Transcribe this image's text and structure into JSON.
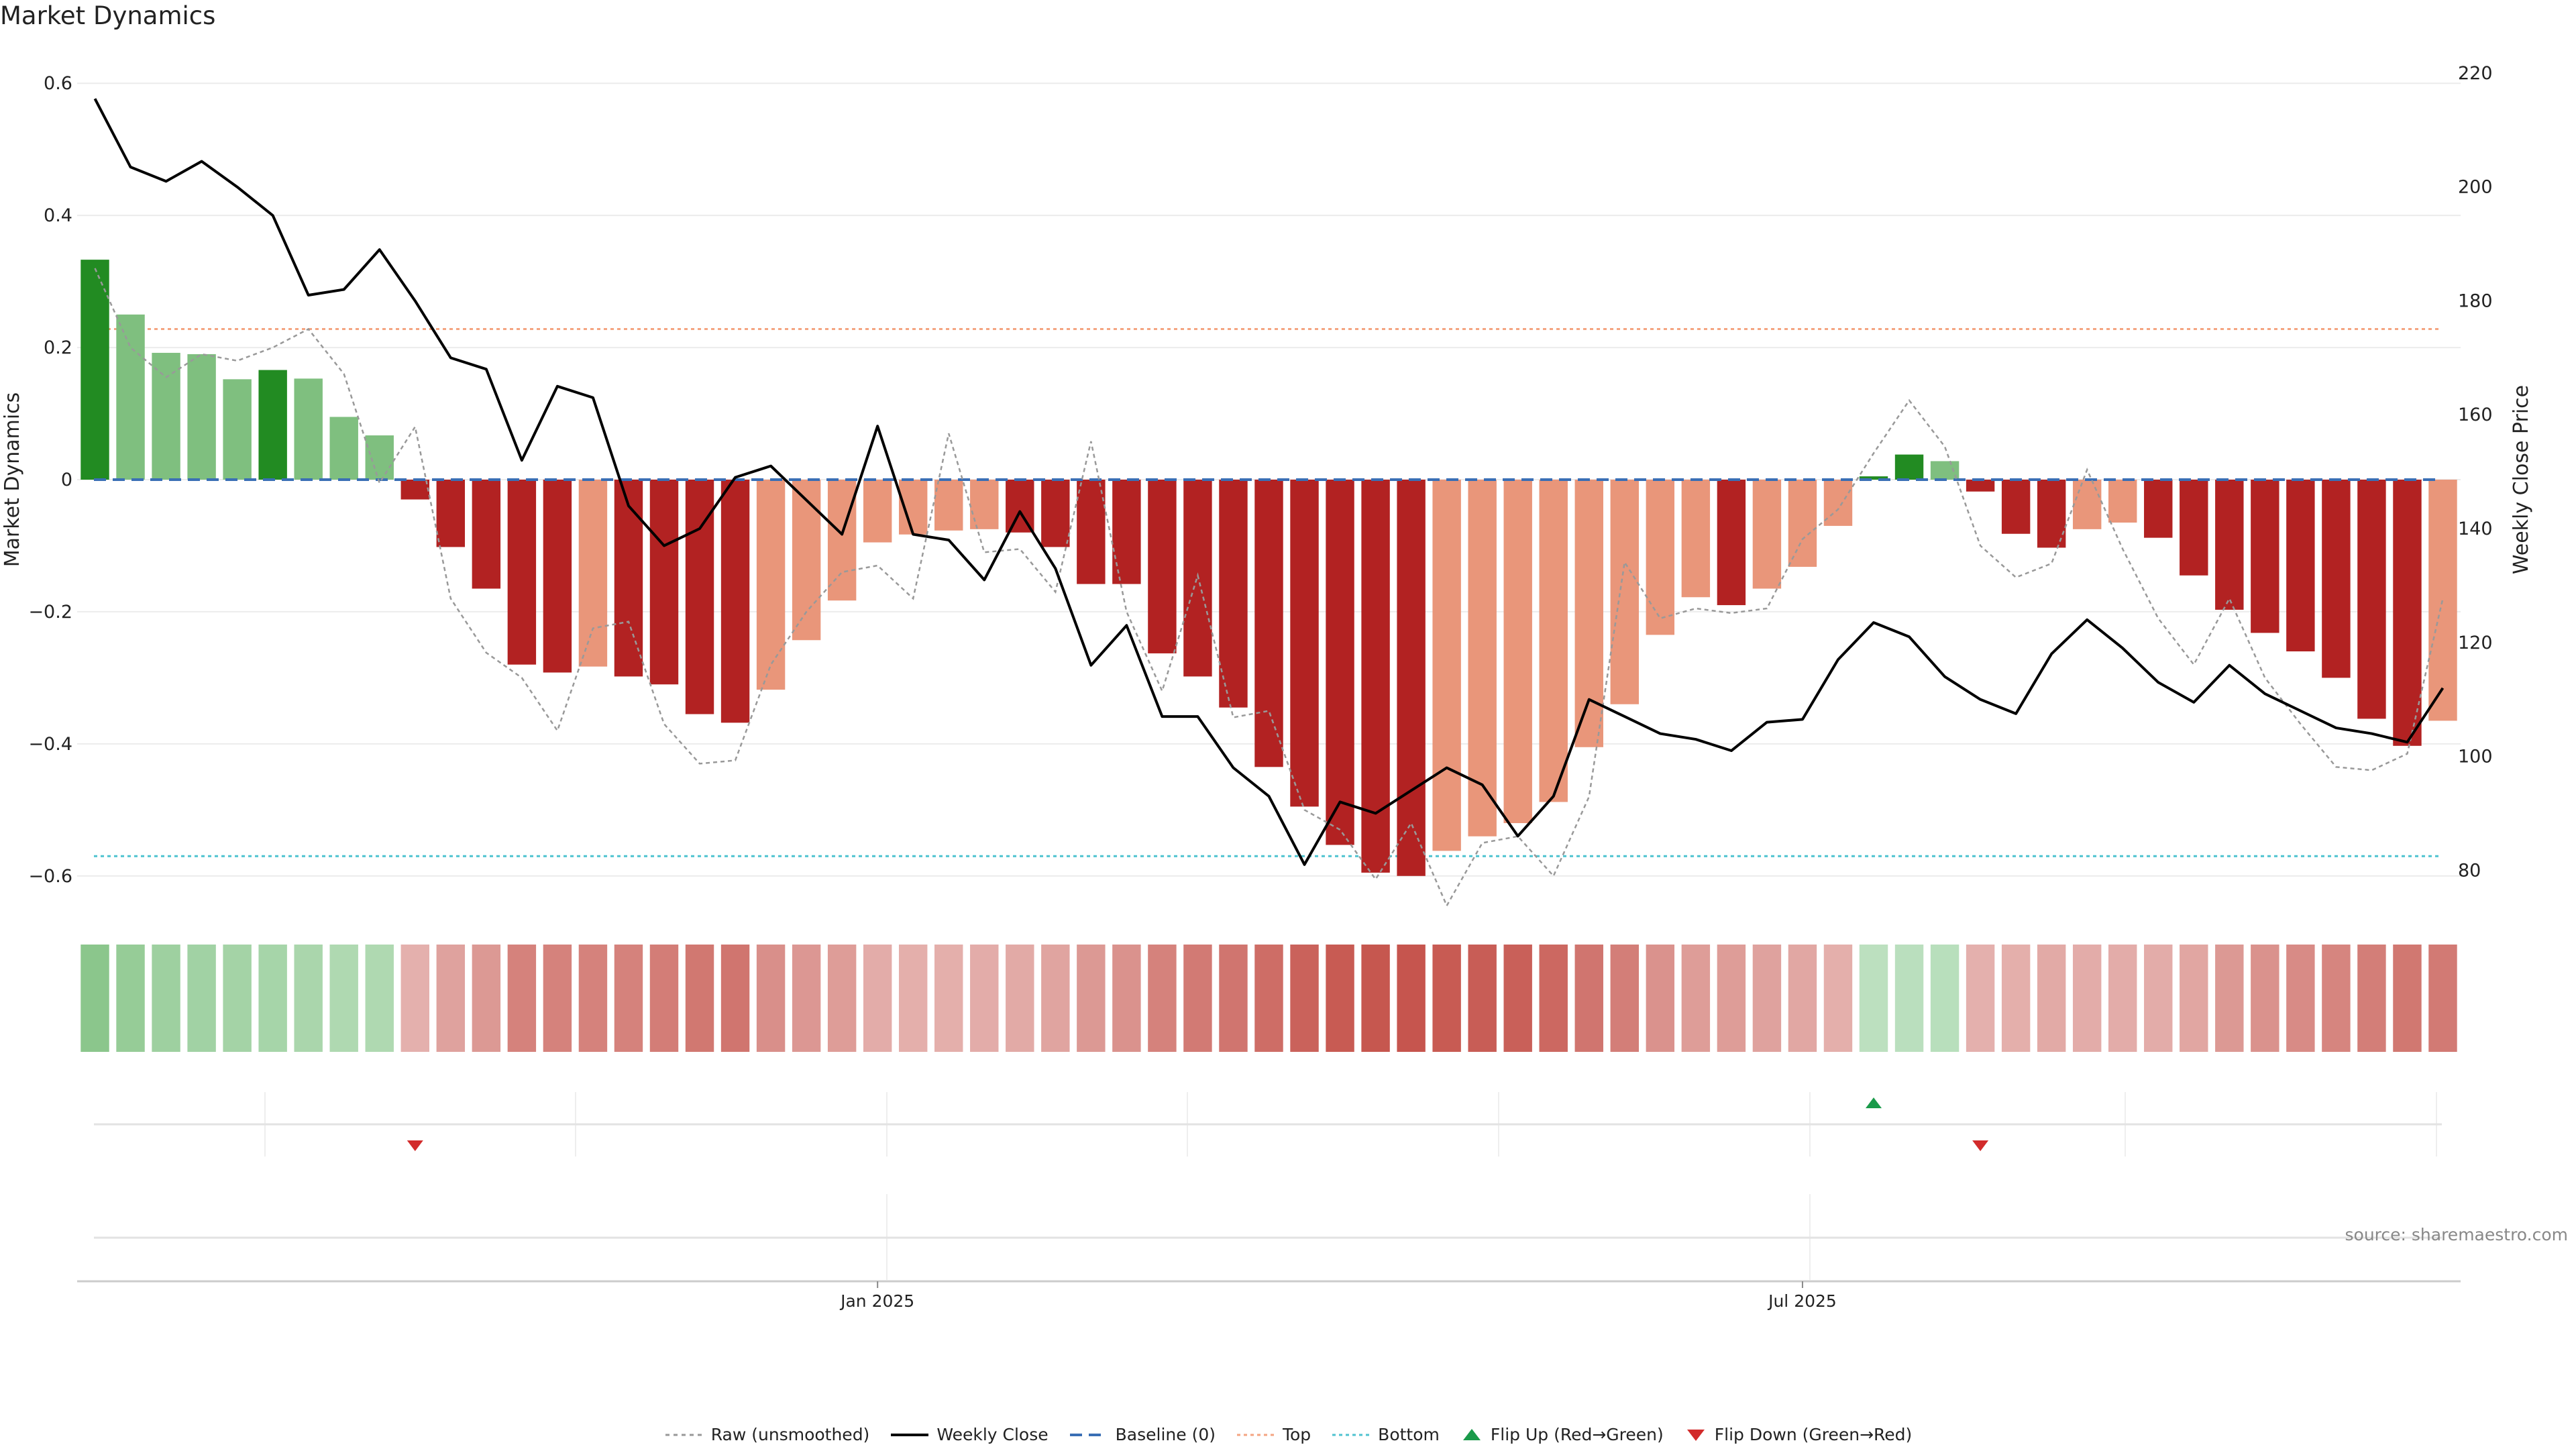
{
  "title": "Market Dynamics",
  "source": "source: sharemaestro.com",
  "colors": {
    "strong_green": "#228b22",
    "light_green": "#7fbf7f",
    "strong_red": "#b22222",
    "light_red": "#e9967a",
    "price_line": "#000000",
    "raw_line": "#999999",
    "baseline": "#3a6fb5",
    "top": "#f4a582",
    "bottom": "#4fc3d0",
    "flip_up": "#1a9a4a",
    "flip_down": "#d22b2b"
  },
  "chart_data": {
    "type": "bar",
    "title": "Market Dynamics",
    "ylabel": "Market Dynamics",
    "y2label": "Weekly Close Price",
    "ylim": [
      -0.65,
      0.65
    ],
    "y2lim": [
      73.2,
      224
    ],
    "yticks": [
      -0.6,
      -0.4,
      -0.2,
      0,
      0.2,
      0.4,
      0.6
    ],
    "ytick_labels": [
      "−0.6",
      "−0.4",
      "−0.2",
      "0",
      "0.2",
      "0.4",
      "0.6"
    ],
    "y2ticks": [
      80,
      100,
      120,
      140,
      160,
      180,
      200,
      220
    ],
    "top_level": 0.228,
    "bottom_level": -0.57,
    "baseline": 0,
    "x_labels": [
      {
        "label": "Jan 2025",
        "index": 22.5
      },
      {
        "label": "Jul 2025",
        "index": 48.5
      }
    ],
    "bar_values": [
      0.333,
      0.25,
      0.192,
      0.19,
      0.152,
      0.166,
      0.153,
      0.095,
      0.067,
      -0.03,
      -0.102,
      -0.165,
      -0.28,
      -0.292,
      -0.283,
      -0.298,
      -0.31,
      -0.355,
      -0.368,
      -0.318,
      -0.243,
      -0.183,
      -0.095,
      -0.083,
      -0.077,
      -0.075,
      -0.08,
      -0.102,
      -0.158,
      -0.158,
      -0.263,
      -0.298,
      -0.345,
      -0.435,
      -0.495,
      -0.553,
      -0.595,
      -0.6,
      -0.562,
      -0.54,
      -0.52,
      -0.488,
      -0.405,
      -0.34,
      -0.235,
      -0.178,
      -0.19,
      -0.165,
      -0.132,
      -0.07,
      0.005,
      0.038,
      0.028,
      -0.018,
      -0.082,
      -0.103,
      -0.075,
      -0.065,
      -0.088,
      -0.145,
      -0.197,
      -0.232,
      -0.26,
      -0.3,
      -0.362,
      -0.403,
      -0.365
    ],
    "bar_strength": [
      "strong",
      "light",
      "light",
      "light",
      "light",
      "strong",
      "light",
      "light",
      "light",
      "strong",
      "strong",
      "strong",
      "strong",
      "strong",
      "light",
      "strong",
      "strong",
      "strong",
      "strong",
      "light",
      "light",
      "light",
      "light",
      "light",
      "light",
      "light",
      "strong",
      "strong",
      "strong",
      "strong",
      "strong",
      "strong",
      "strong",
      "strong",
      "strong",
      "strong",
      "strong",
      "strong",
      "light",
      "light",
      "light",
      "light",
      "light",
      "light",
      "light",
      "light",
      "strong",
      "light",
      "light",
      "light",
      "strong",
      "strong",
      "light",
      "strong",
      "strong",
      "strong",
      "light",
      "light",
      "strong",
      "strong",
      "strong",
      "strong",
      "strong",
      "strong",
      "strong",
      "strong",
      "light"
    ],
    "weekly_close": [
      215.5,
      203.5,
      201,
      204.5,
      200,
      195,
      181,
      182,
      189,
      180,
      170,
      168,
      152,
      165,
      163,
      144,
      137,
      140,
      149,
      151,
      145,
      139,
      158,
      139,
      138,
      131,
      143,
      133,
      116,
      123,
      107,
      107,
      98,
      93,
      81,
      92,
      90,
      94,
      98,
      95,
      86,
      93,
      110,
      107,
      104,
      103,
      101,
      106,
      106.5,
      117,
      123.5,
      121,
      114,
      110,
      107.5,
      118,
      124,
      119,
      113,
      109.5,
      116,
      111,
      108,
      105,
      104,
      102.5,
      112
    ],
    "raw": [
      0.32,
      0.2,
      0.155,
      0.19,
      0.18,
      0.2,
      0.228,
      0.16,
      -0.005,
      0.08,
      -0.18,
      -0.262,
      -0.3,
      -0.38,
      -0.225,
      -0.215,
      -0.37,
      -0.43,
      -0.425,
      -0.28,
      -0.2,
      -0.14,
      -0.13,
      -0.18,
      0.07,
      -0.11,
      -0.105,
      -0.17,
      0.058,
      -0.2,
      -0.32,
      -0.145,
      -0.36,
      -0.35,
      -0.5,
      -0.53,
      -0.605,
      -0.52,
      -0.645,
      -0.55,
      -0.54,
      -0.6,
      -0.48,
      -0.125,
      -0.21,
      -0.195,
      -0.202,
      -0.195,
      -0.09,
      -0.045,
      0.04,
      0.12,
      0.05,
      -0.1,
      -0.148,
      -0.127,
      0.015,
      -0.105,
      -0.21,
      -0.28,
      -0.18,
      -0.3,
      -0.37,
      -0.435,
      -0.44,
      -0.415,
      -0.18
    ],
    "strength_panel": [
      0.85,
      0.72,
      0.62,
      0.58,
      0.55,
      0.52,
      0.48,
      0.42,
      0.42,
      0.27,
      0.38,
      0.45,
      0.62,
      0.62,
      0.62,
      0.62,
      0.66,
      0.7,
      0.72,
      0.52,
      0.46,
      0.42,
      0.3,
      0.28,
      0.28,
      0.3,
      0.32,
      0.36,
      0.45,
      0.5,
      0.62,
      0.68,
      0.72,
      0.78,
      0.86,
      0.92,
      0.95,
      0.96,
      0.92,
      0.9,
      0.88,
      0.82,
      0.72,
      0.65,
      0.5,
      0.42,
      0.42,
      0.38,
      0.34,
      0.28,
      0.26,
      0.28,
      0.3,
      0.27,
      0.28,
      0.32,
      0.3,
      0.3,
      0.3,
      0.35,
      0.45,
      0.5,
      0.55,
      0.6,
      0.65,
      0.7,
      0.68
    ],
    "flips": [
      {
        "type": "down",
        "index": 9
      },
      {
        "type": "up",
        "index": 50
      },
      {
        "type": "down",
        "index": 53
      }
    ],
    "legend": [
      "Raw (unsmoothed)",
      "Weekly Close",
      "Baseline (0)",
      "Top",
      "Bottom",
      "Flip Up (Red→Green)",
      "Flip Down (Green→Red)"
    ]
  }
}
